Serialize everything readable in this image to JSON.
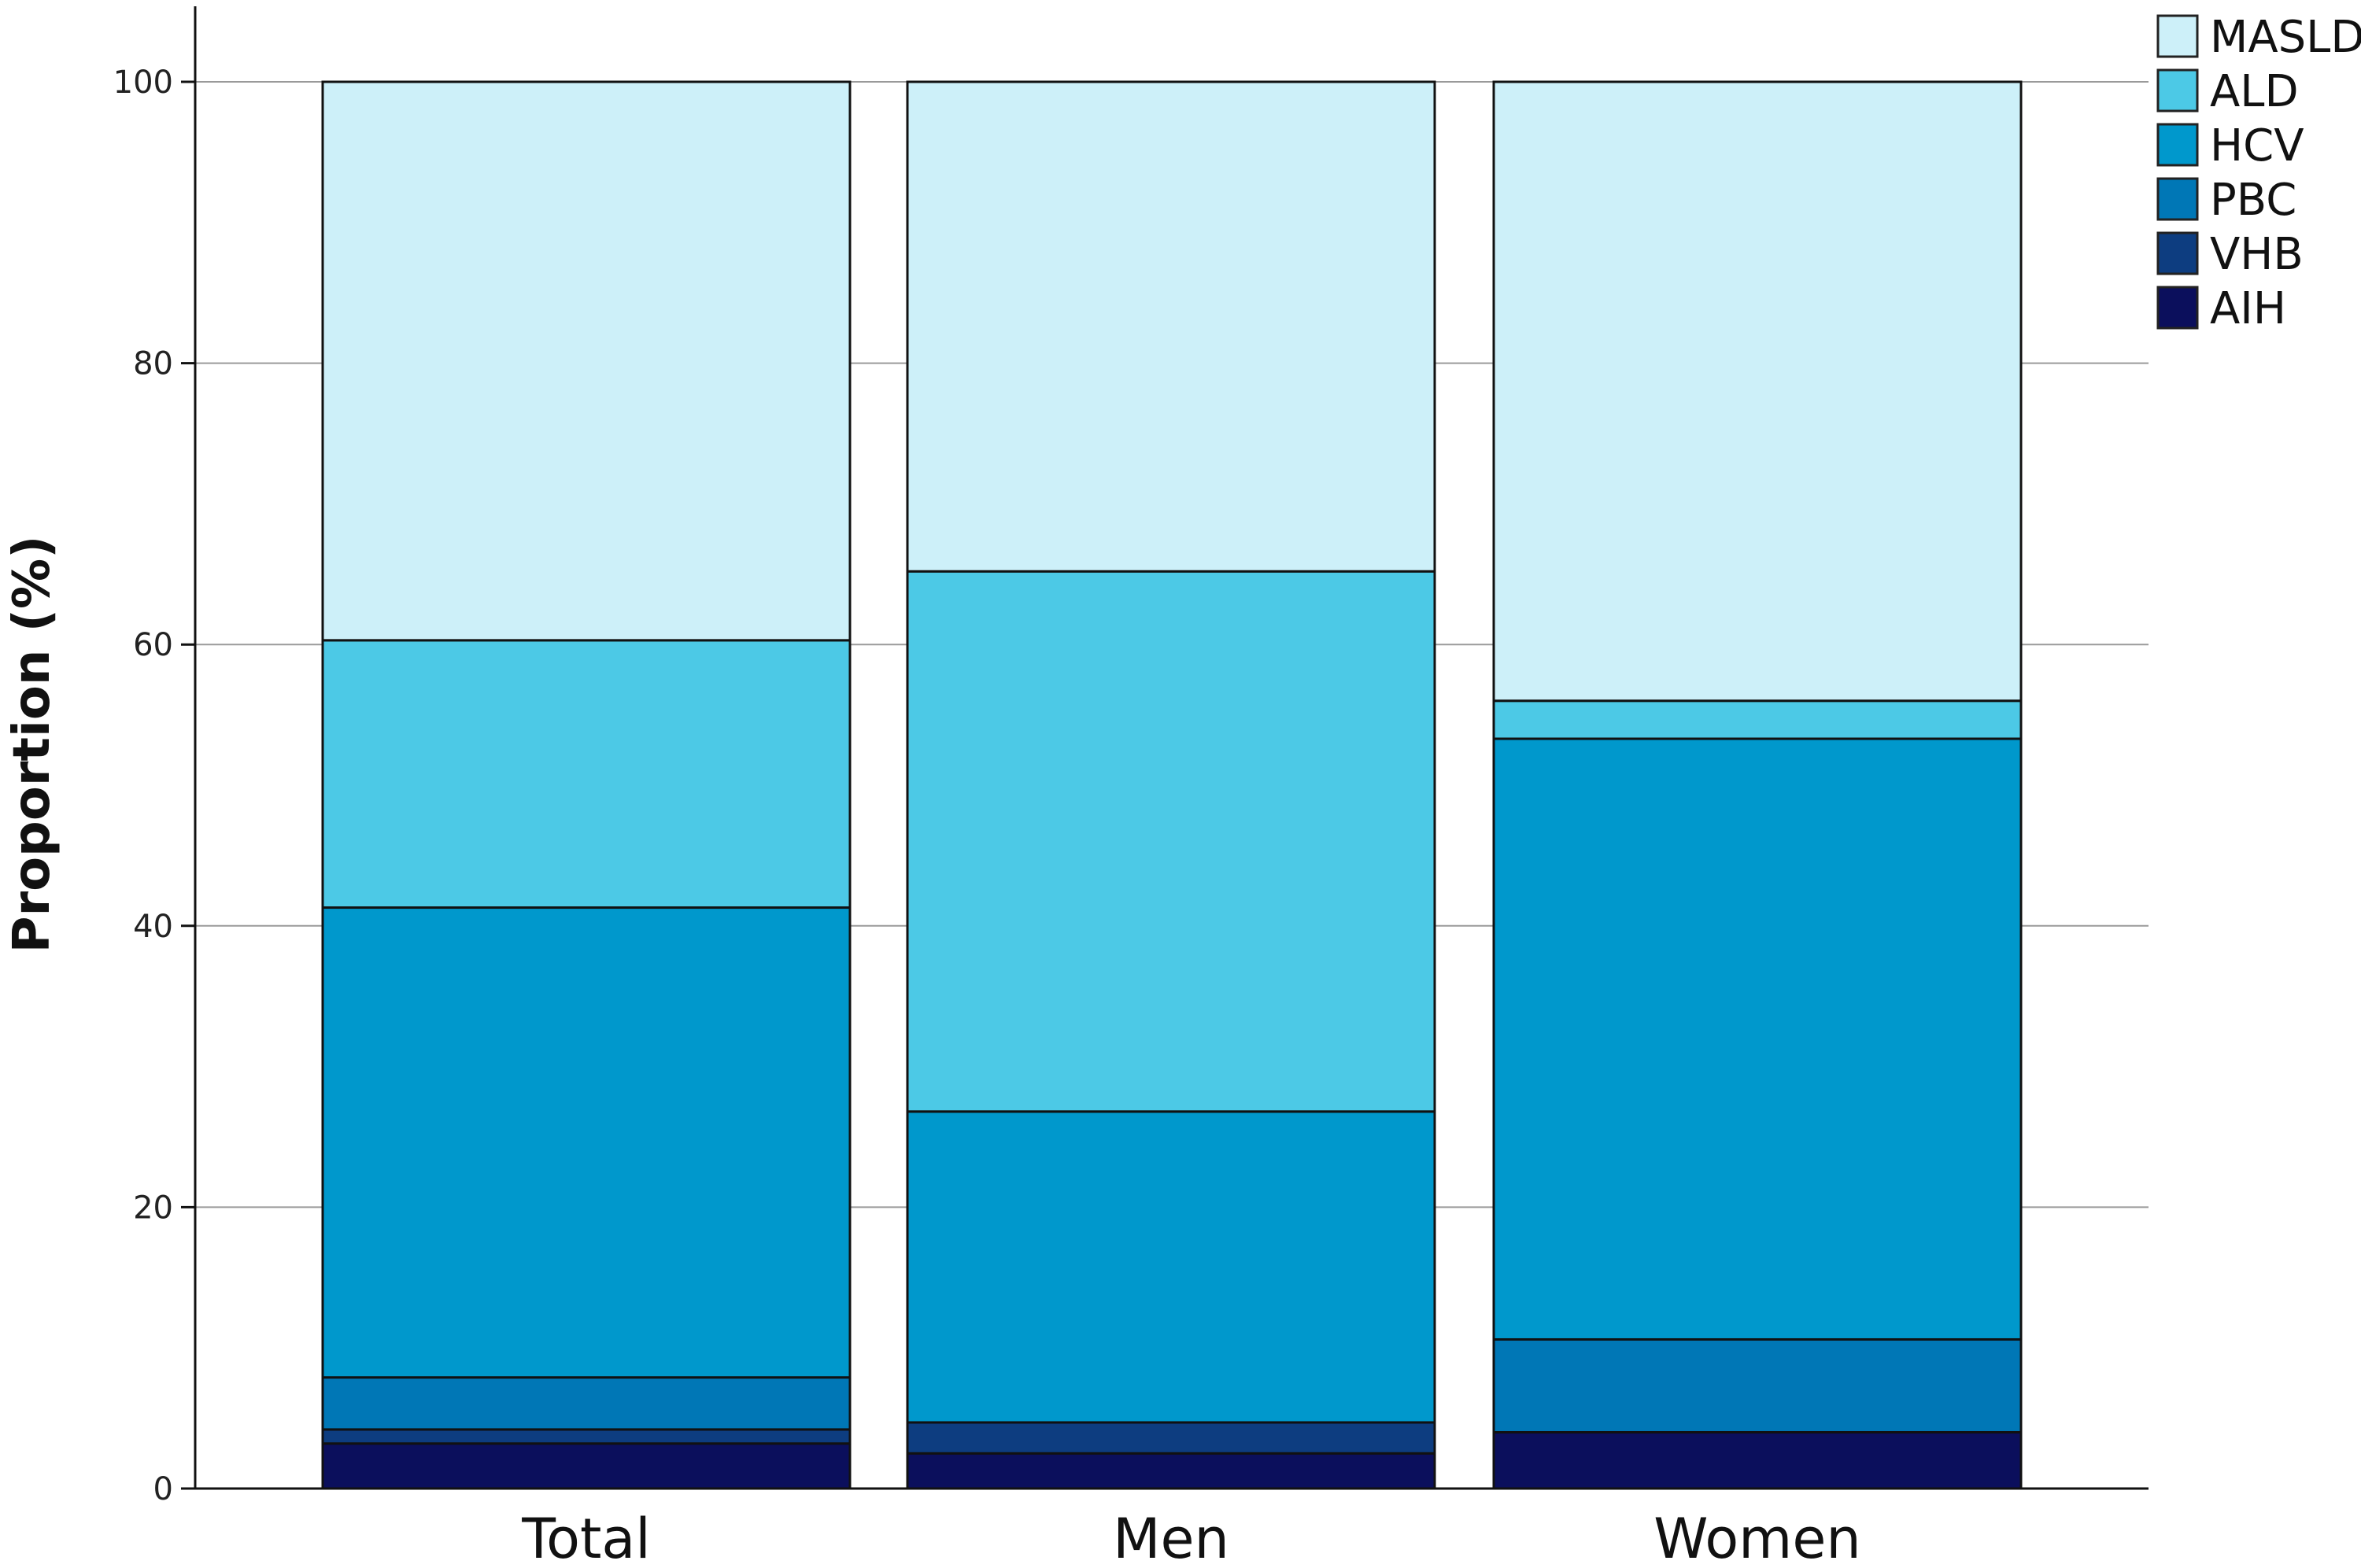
{
  "chart_data": {
    "type": "bar",
    "stacked": true,
    "categories": [
      "Total",
      "Men",
      "Women"
    ],
    "ylabel": "Proportion (%)",
    "xlabel": "",
    "ylim": [
      0,
      100
    ],
    "yticks": [
      "0",
      "20",
      "40",
      "60",
      "80",
      "100"
    ],
    "grid": true,
    "legend_position": "top-right",
    "series": [
      {
        "name": "AIH",
        "color": "#0b0f5c",
        "values": [
          3.2,
          2.5,
          4.0
        ]
      },
      {
        "name": "VHB",
        "color": "#0d3d80",
        "values": [
          1.0,
          2.2,
          0.0
        ]
      },
      {
        "name": "PBC",
        "color": "#0077b6",
        "values": [
          3.7,
          0.0,
          6.6
        ]
      },
      {
        "name": "HCV",
        "color": "#0098cc",
        "values": [
          33.4,
          22.1,
          42.7
        ]
      },
      {
        "name": "ALD",
        "color": "#4cc9e6",
        "values": [
          19.0,
          38.4,
          2.7
        ]
      },
      {
        "name": "MASLD",
        "color": "#cdf0f9",
        "values": [
          39.7,
          34.8,
          44.0
        ]
      }
    ]
  }
}
